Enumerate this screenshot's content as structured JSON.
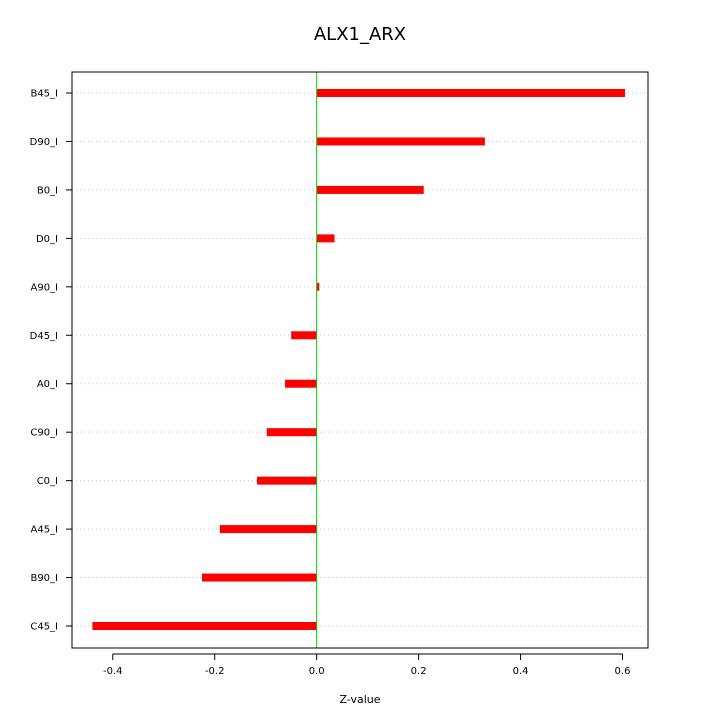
{
  "chart_data": {
    "type": "bar",
    "orientation": "horizontal",
    "title": "ALX1_ARX",
    "xlabel": "Z-value",
    "ylabel": "",
    "xlim": [
      -0.48,
      0.65
    ],
    "xticks": [
      -0.4,
      -0.2,
      0.0,
      0.2,
      0.4,
      0.6
    ],
    "xtick_labels": [
      "-0.4",
      "-0.2",
      "0.0",
      "0.2",
      "0.4",
      "0.6"
    ],
    "grid": "horizontal dotted lines at each category",
    "reference_line": {
      "x": 0,
      "color": "#00cc00"
    },
    "bar_color": "#ff0000",
    "categories": [
      "B45_I",
      "D90_I",
      "B0_I",
      "D0_I",
      "A90_I",
      "D45_I",
      "A0_I",
      "C90_I",
      "C0_I",
      "A45_I",
      "B90_I",
      "C45_I"
    ],
    "values": [
      0.605,
      0.33,
      0.21,
      0.035,
      0.005,
      -0.05,
      -0.062,
      -0.098,
      -0.117,
      -0.19,
      -0.225,
      -0.44
    ]
  }
}
